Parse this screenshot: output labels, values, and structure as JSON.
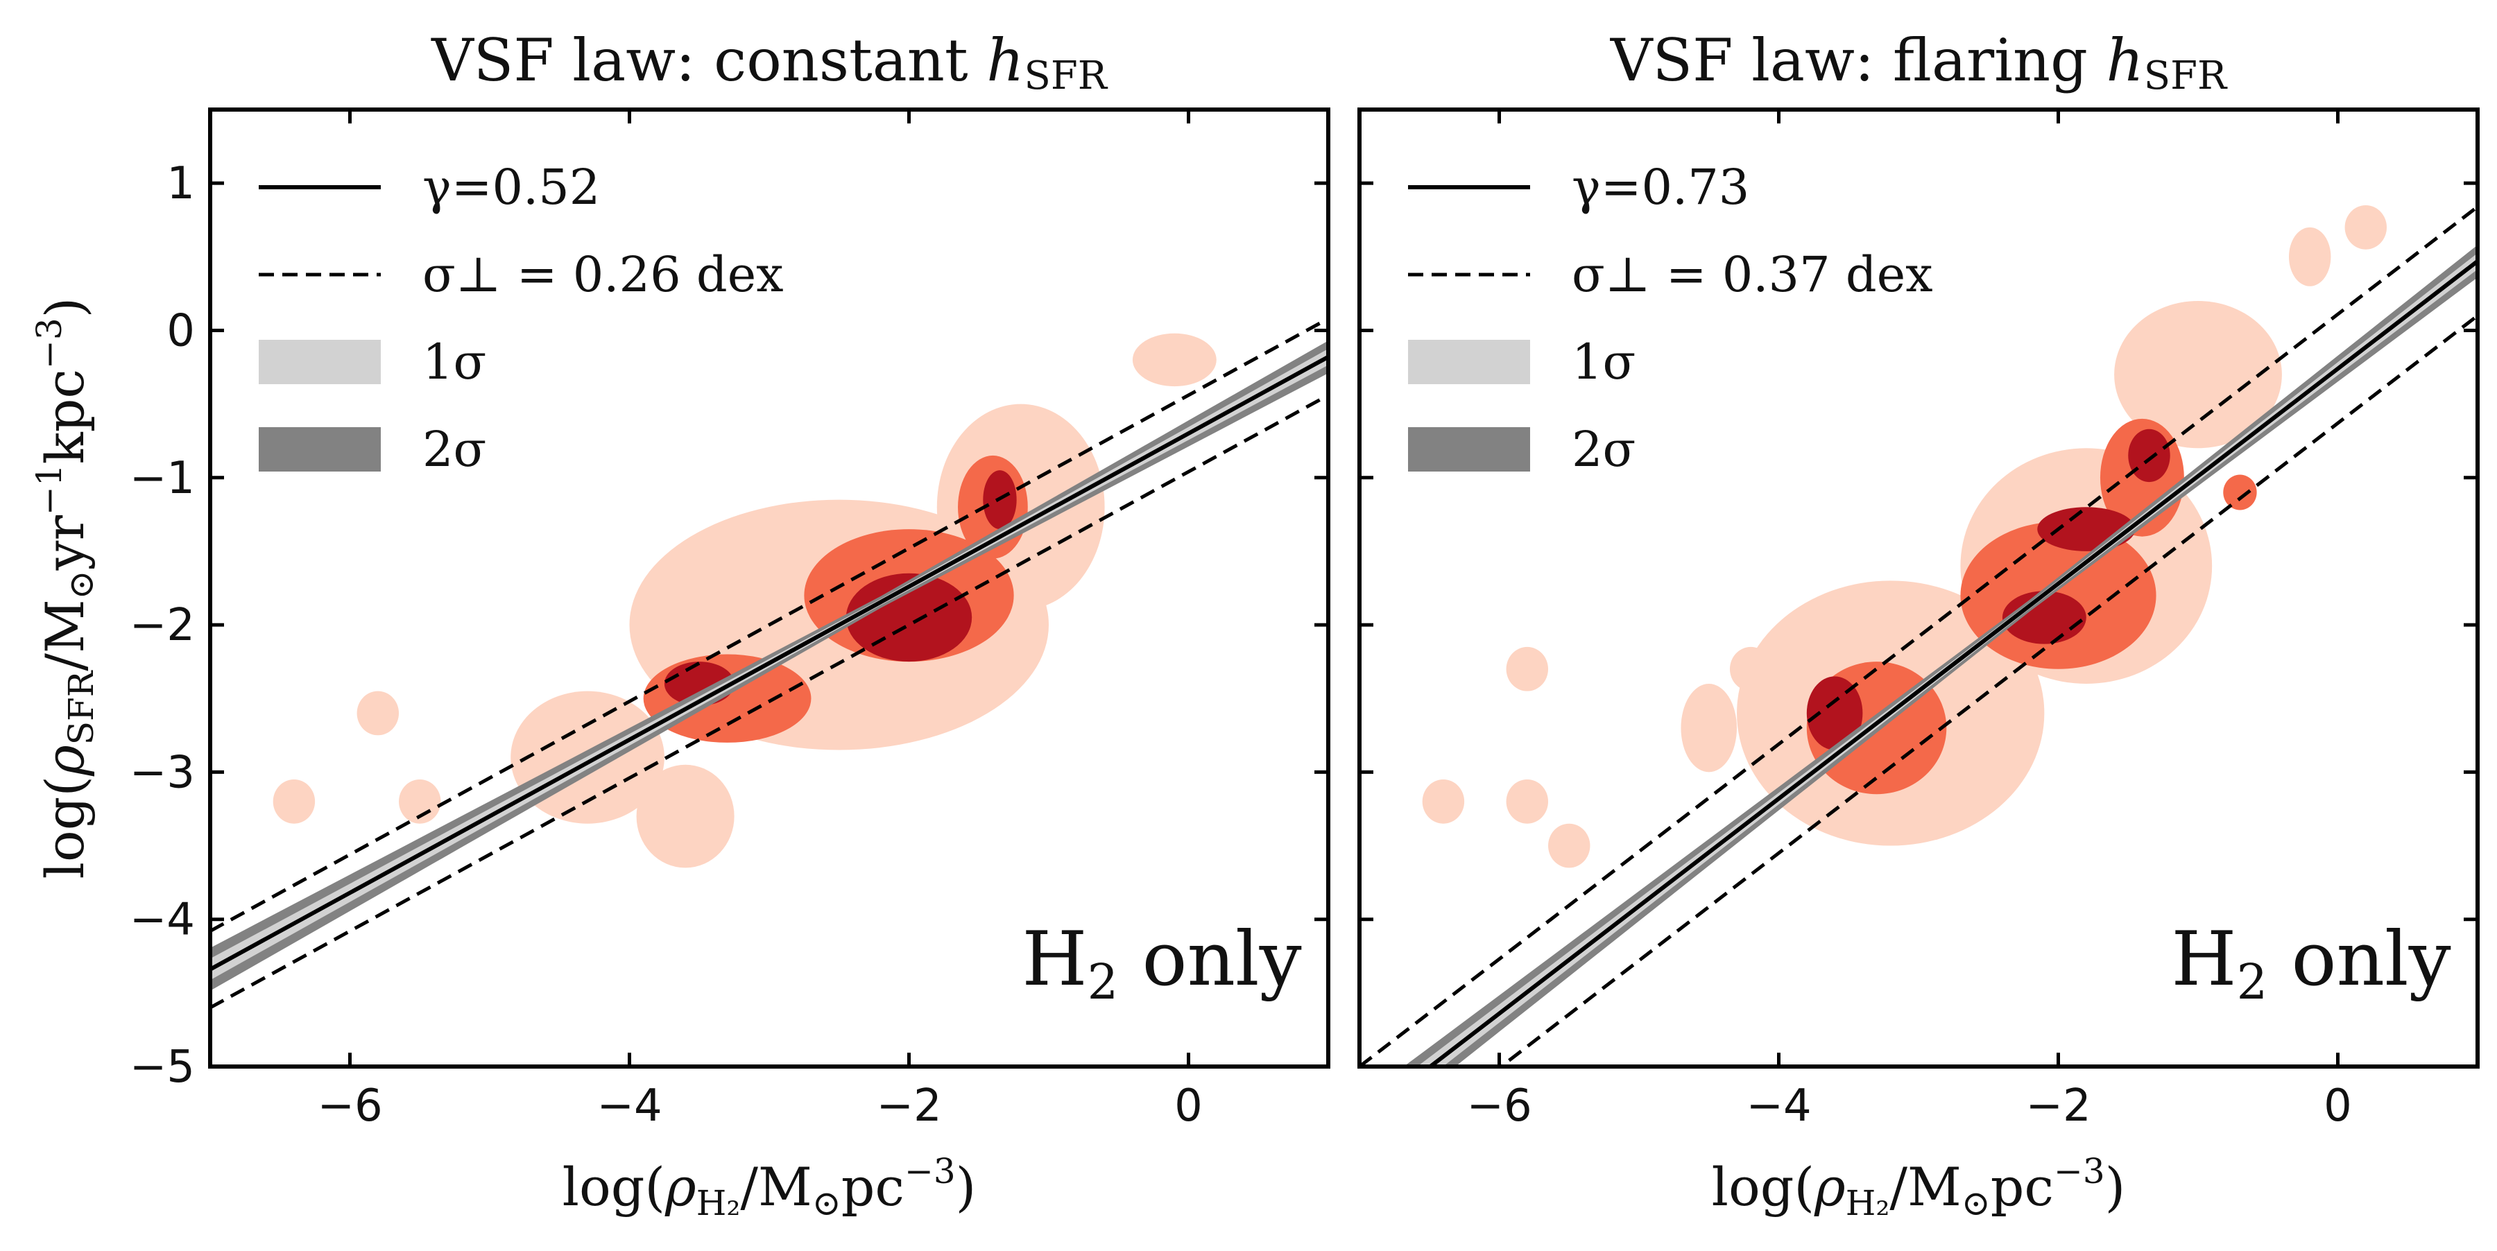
{
  "chart_data": [
    {
      "type": "scatter",
      "title": "VSF law: constant h_SFR",
      "title_main": "VSF law: constant ",
      "title_sym": "h",
      "title_sub": "SFR",
      "xlabel": "log(ρ_H2/M_⊙pc^-3)",
      "ylabel": "log(ρ_SFR/M_⊙yr^-1kpc^-3)",
      "xlim": [
        -7,
        1
      ],
      "ylim": [
        -5,
        1.5
      ],
      "xticks": [
        -6,
        -4,
        -2,
        0
      ],
      "yticks": [
        -5,
        -4,
        -3,
        -2,
        -1,
        0,
        1
      ],
      "fit": {
        "slope": 0.52,
        "intercept": -0.7,
        "scatter_offset": 0.26
      },
      "legend": {
        "position": "top-left",
        "entries": [
          {
            "kind": "solid",
            "label": "γ=0.52"
          },
          {
            "kind": "dashed",
            "label": "σ⊥ = 0.26 dex"
          },
          {
            "kind": "band1",
            "label": "1σ"
          },
          {
            "kind": "band2",
            "label": "2σ"
          }
        ]
      },
      "annotation": "H2 only",
      "density_blobs": [
        {
          "x": -4.3,
          "y": -2.9,
          "rx": 0.55,
          "ry": 0.45,
          "level": 0
        },
        {
          "x": -2.5,
          "y": -2.0,
          "rx": 1.5,
          "ry": 0.85,
          "level": 0
        },
        {
          "x": -1.2,
          "y": -1.2,
          "rx": 0.6,
          "ry": 0.7,
          "level": 0
        },
        {
          "x": -3.6,
          "y": -3.3,
          "rx": 0.35,
          "ry": 0.35,
          "level": 0
        },
        {
          "x": -0.1,
          "y": -0.2,
          "rx": 0.3,
          "ry": 0.18,
          "level": 0
        },
        {
          "x": -6.4,
          "y": -3.2,
          "rx": 0.15,
          "ry": 0.15,
          "level": 0
        },
        {
          "x": -5.8,
          "y": -2.6,
          "rx": 0.15,
          "ry": 0.15,
          "level": 0
        },
        {
          "x": -5.5,
          "y": -3.2,
          "rx": 0.15,
          "ry": 0.15,
          "level": 0
        },
        {
          "x": -3.3,
          "y": -2.5,
          "rx": 0.6,
          "ry": 0.3,
          "level": 1
        },
        {
          "x": -2.0,
          "y": -1.8,
          "rx": 0.75,
          "ry": 0.45,
          "level": 1
        },
        {
          "x": -1.4,
          "y": -1.2,
          "rx": 0.25,
          "ry": 0.35,
          "level": 1
        },
        {
          "x": -3.5,
          "y": -2.4,
          "rx": 0.25,
          "ry": 0.15,
          "level": 2
        },
        {
          "x": -2.0,
          "y": -1.95,
          "rx": 0.45,
          "ry": 0.3,
          "level": 2
        },
        {
          "x": -1.35,
          "y": -1.15,
          "rx": 0.12,
          "ry": 0.2,
          "level": 2
        }
      ]
    },
    {
      "type": "scatter",
      "title": "VSF law: flaring h_SFR",
      "title_main": "VSF law: flaring ",
      "title_sym": "h",
      "title_sub": "SFR",
      "xlabel": "log(ρ_H2/M_⊙pc^-3)",
      "ylabel": "",
      "xlim": [
        -7,
        1
      ],
      "ylim": [
        -5,
        1.5
      ],
      "xticks": [
        -6,
        -4,
        -2,
        0
      ],
      "yticks": [
        -5,
        -4,
        -3,
        -2,
        -1,
        0,
        1
      ],
      "fit": {
        "slope": 0.73,
        "intercept": -0.26,
        "scatter_offset": 0.37
      },
      "legend": {
        "position": "top-left",
        "entries": [
          {
            "kind": "solid",
            "label": "γ=0.73"
          },
          {
            "kind": "dashed",
            "label": "σ⊥ = 0.37 dex"
          },
          {
            "kind": "band1",
            "label": "1σ"
          },
          {
            "kind": "band2",
            "label": "2σ"
          }
        ]
      },
      "annotation": "H2 only",
      "density_blobs": [
        {
          "x": -3.2,
          "y": -2.6,
          "rx": 1.1,
          "ry": 0.9,
          "level": 0
        },
        {
          "x": -1.8,
          "y": -1.6,
          "rx": 0.9,
          "ry": 0.8,
          "level": 0
        },
        {
          "x": -1.0,
          "y": -0.3,
          "rx": 0.6,
          "ry": 0.5,
          "level": 0
        },
        {
          "x": -4.5,
          "y": -2.7,
          "rx": 0.2,
          "ry": 0.3,
          "level": 0
        },
        {
          "x": -6.4,
          "y": -3.2,
          "rx": 0.15,
          "ry": 0.15,
          "level": 0
        },
        {
          "x": -5.8,
          "y": -2.3,
          "rx": 0.15,
          "ry": 0.15,
          "level": 0
        },
        {
          "x": -5.8,
          "y": -3.2,
          "rx": 0.15,
          "ry": 0.15,
          "level": 0
        },
        {
          "x": -5.5,
          "y": -3.5,
          "rx": 0.15,
          "ry": 0.15,
          "level": 0
        },
        {
          "x": -4.2,
          "y": -2.3,
          "rx": 0.15,
          "ry": 0.15,
          "level": 0
        },
        {
          "x": -0.2,
          "y": 0.5,
          "rx": 0.15,
          "ry": 0.2,
          "level": 0
        },
        {
          "x": 0.2,
          "y": 0.7,
          "rx": 0.15,
          "ry": 0.15,
          "level": 0
        },
        {
          "x": -3.3,
          "y": -2.7,
          "rx": 0.5,
          "ry": 0.45,
          "level": 1
        },
        {
          "x": -2.0,
          "y": -1.8,
          "rx": 0.7,
          "ry": 0.5,
          "level": 1
        },
        {
          "x": -1.4,
          "y": -1.0,
          "rx": 0.3,
          "ry": 0.4,
          "level": 1
        },
        {
          "x": -0.7,
          "y": -1.1,
          "rx": 0.12,
          "ry": 0.12,
          "level": 1
        },
        {
          "x": -3.6,
          "y": -2.6,
          "rx": 0.2,
          "ry": 0.25,
          "level": 2
        },
        {
          "x": -2.1,
          "y": -1.95,
          "rx": 0.3,
          "ry": 0.18,
          "level": 2
        },
        {
          "x": -1.8,
          "y": -1.35,
          "rx": 0.35,
          "ry": 0.15,
          "level": 2
        },
        {
          "x": -1.35,
          "y": -0.85,
          "rx": 0.15,
          "ry": 0.18,
          "level": 2
        }
      ]
    }
  ],
  "colors": {
    "level0": "#fdd4c2",
    "level1": "#f4694a",
    "level2": "#b2131e",
    "band1": "#d2d2d2",
    "band2": "#828282",
    "line": "#000000"
  }
}
